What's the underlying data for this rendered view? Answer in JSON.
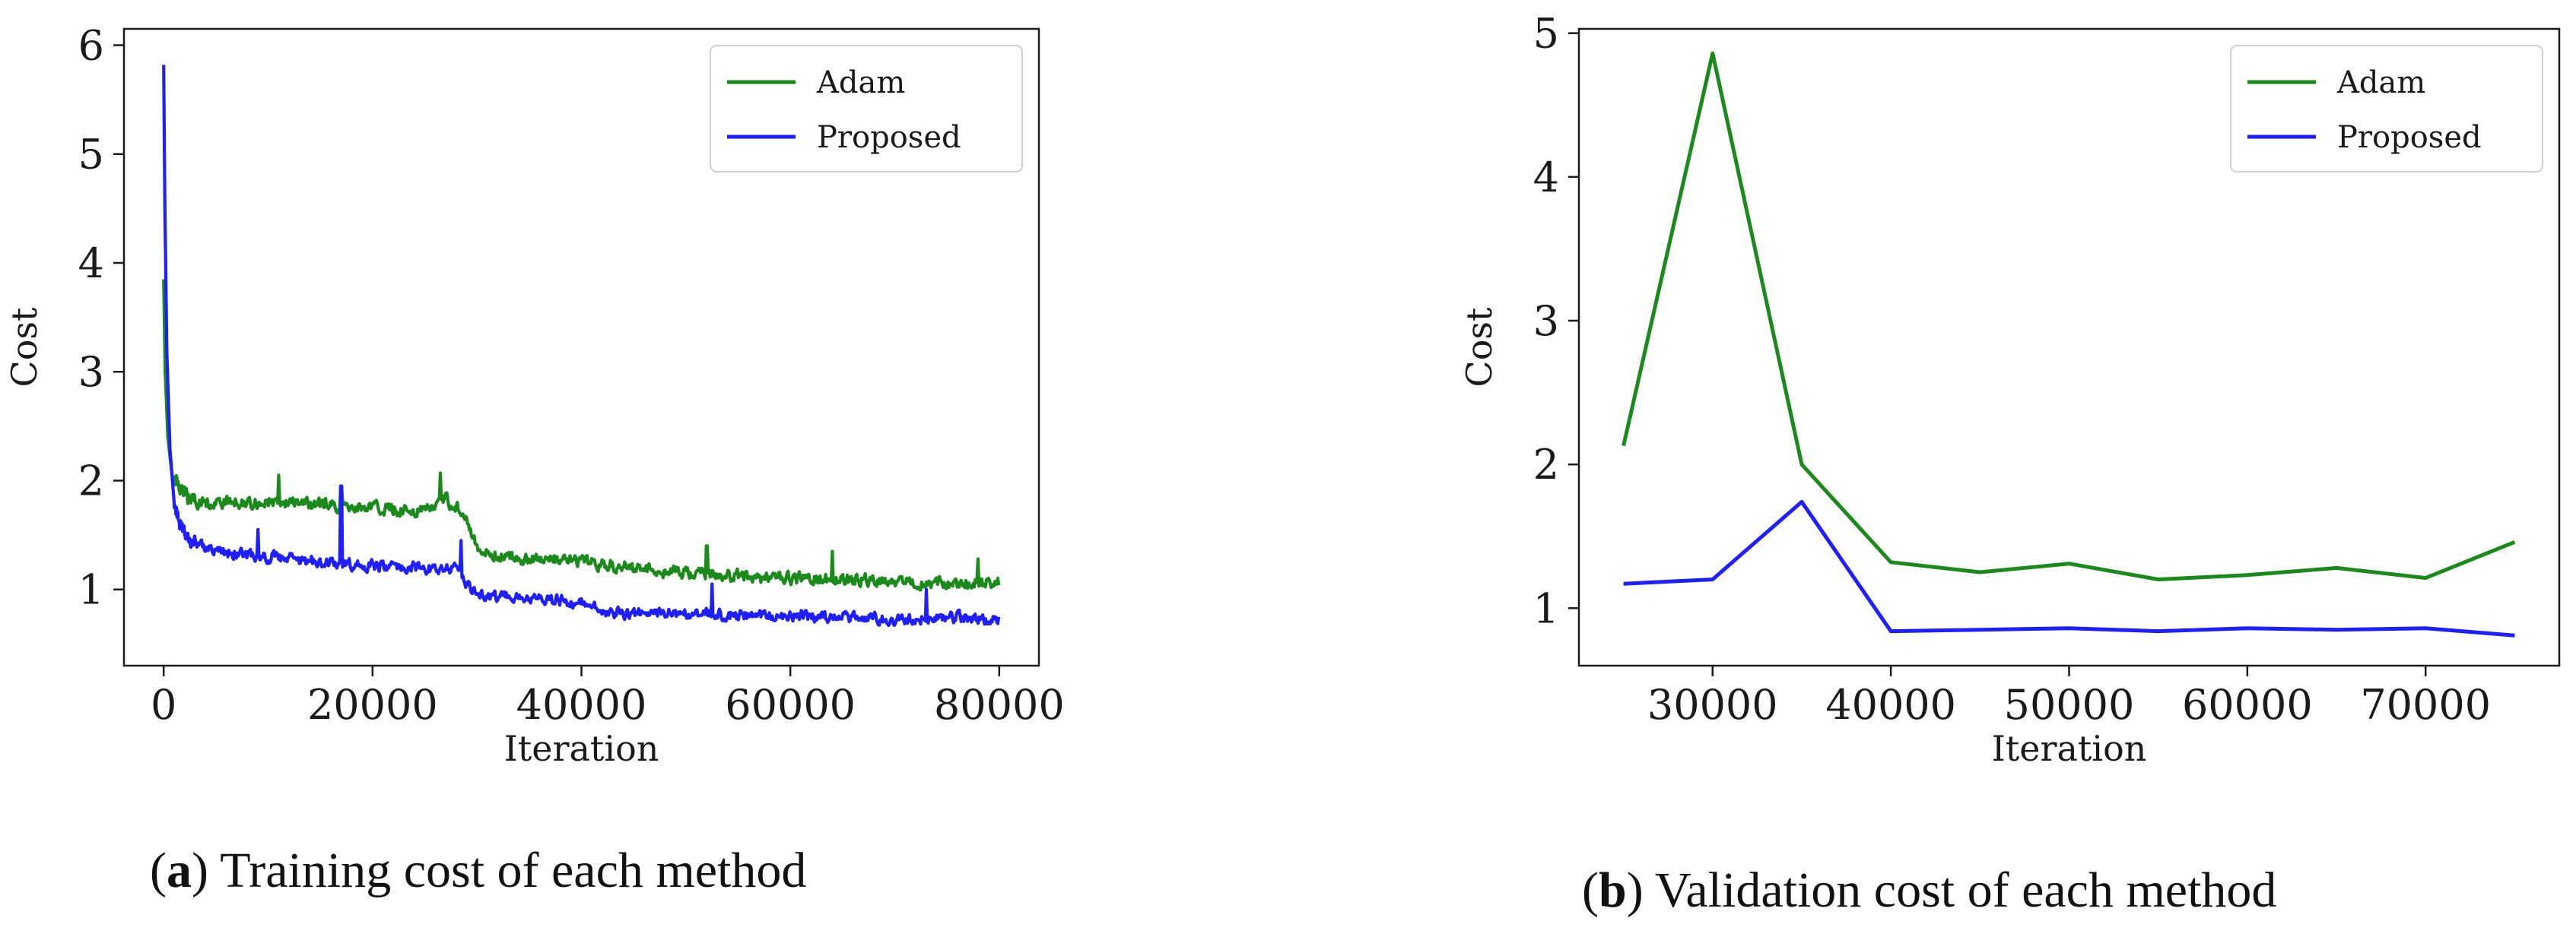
{
  "chart_data": [
    {
      "type": "line",
      "caption_letter": "a",
      "caption_text": "Training cost of each method",
      "xlabel": "Iteration",
      "ylabel": "Cost",
      "xlim": [
        -3800,
        83800
      ],
      "ylim": [
        0.3,
        6.15
      ],
      "xticks": [
        0,
        20000,
        40000,
        60000,
        80000
      ],
      "yticks": [
        1,
        2,
        3,
        4,
        5,
        6
      ],
      "grid": false,
      "legend": "top-right",
      "series_colors": [
        "#1a8a1a",
        "#1e1eff"
      ],
      "series": [
        {
          "name": "Adam",
          "anchors": [
            [
              0,
              3.85
            ],
            [
              150,
              3.0
            ],
            [
              400,
              2.4
            ],
            [
              800,
              2.05
            ],
            [
              1500,
              1.95
            ],
            [
              2500,
              1.82
            ],
            [
              5000,
              1.8
            ],
            [
              10000,
              1.8
            ],
            [
              15000,
              1.78
            ],
            [
              20000,
              1.75
            ],
            [
              25000,
              1.72
            ],
            [
              27000,
              1.82
            ],
            [
              29000,
              1.7
            ],
            [
              30000,
              1.35
            ],
            [
              33000,
              1.3
            ],
            [
              40000,
              1.25
            ],
            [
              45000,
              1.2
            ],
            [
              50000,
              1.15
            ],
            [
              55000,
              1.12
            ],
            [
              60000,
              1.1
            ],
            [
              65000,
              1.1
            ],
            [
              70000,
              1.08
            ],
            [
              75000,
              1.06
            ],
            [
              80000,
              1.06
            ]
          ],
          "noise": 0.09,
          "spikes": [
            [
              11000,
              2.05
            ],
            [
              17000,
              1.95
            ],
            [
              26500,
              2.07
            ],
            [
              52000,
              1.4
            ],
            [
              64000,
              1.35
            ],
            [
              78000,
              1.28
            ]
          ]
        },
        {
          "name": "Proposed",
          "anchors": [
            [
              0,
              5.82
            ],
            [
              120,
              4.5
            ],
            [
              300,
              3.2
            ],
            [
              600,
              2.3
            ],
            [
              1000,
              1.8
            ],
            [
              1500,
              1.6
            ],
            [
              2500,
              1.45
            ],
            [
              5000,
              1.35
            ],
            [
              10000,
              1.3
            ],
            [
              15000,
              1.25
            ],
            [
              20000,
              1.22
            ],
            [
              25000,
              1.2
            ],
            [
              28000,
              1.18
            ],
            [
              30000,
              0.95
            ],
            [
              35000,
              0.92
            ],
            [
              40000,
              0.88
            ],
            [
              42000,
              0.8
            ],
            [
              45000,
              0.78
            ],
            [
              50000,
              0.78
            ],
            [
              55000,
              0.76
            ],
            [
              60000,
              0.76
            ],
            [
              65000,
              0.74
            ],
            [
              70000,
              0.72
            ],
            [
              75000,
              0.75
            ],
            [
              80000,
              0.72
            ]
          ],
          "noise": 0.08,
          "spikes": [
            [
              17000,
              1.95
            ],
            [
              9000,
              1.55
            ],
            [
              28500,
              1.45
            ],
            [
              52500,
              1.05
            ],
            [
              73000,
              1.0
            ]
          ]
        }
      ]
    },
    {
      "type": "line",
      "caption_letter": "b",
      "caption_text": "Validation cost of each method",
      "xlabel": "Iteration",
      "ylabel": "Cost",
      "xlim": [
        22500,
        77500
      ],
      "ylim": [
        0.6,
        5.03
      ],
      "xticks": [
        30000,
        40000,
        50000,
        60000,
        70000
      ],
      "yticks": [
        1,
        2,
        3,
        4,
        5
      ],
      "grid": false,
      "legend": "top-right",
      "series_colors": [
        "#1a8a1a",
        "#1e1eff"
      ],
      "x": [
        25000,
        30000,
        35000,
        40000,
        45000,
        50000,
        55000,
        60000,
        65000,
        70000,
        75000
      ],
      "series": [
        {
          "name": "Adam",
          "values": [
            2.13,
            4.86,
            2.0,
            1.32,
            1.25,
            1.31,
            1.2,
            1.23,
            1.28,
            1.21,
            1.46
          ]
        },
        {
          "name": "Proposed",
          "values": [
            1.17,
            1.2,
            1.74,
            0.84,
            0.85,
            0.86,
            0.84,
            0.86,
            0.85,
            0.86,
            0.81
          ]
        }
      ]
    }
  ]
}
